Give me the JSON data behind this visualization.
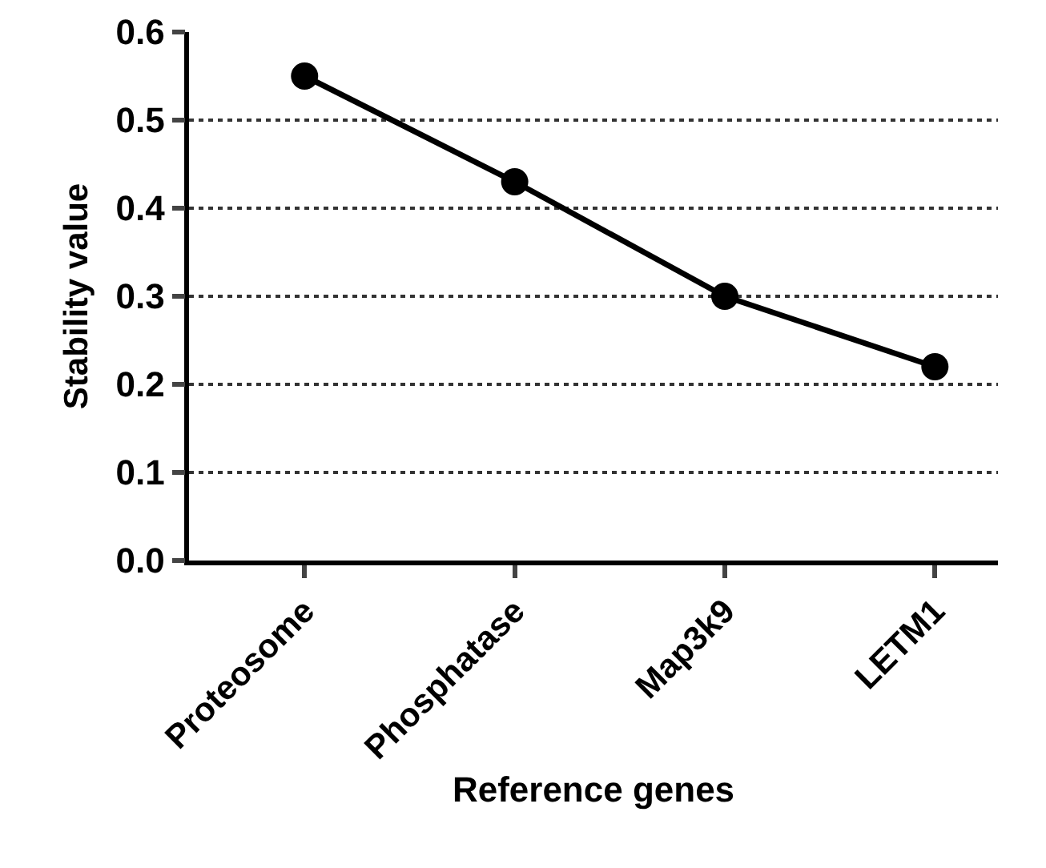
{
  "chart_data": {
    "type": "line",
    "xlabel": "Reference genes",
    "ylabel": "Stability value",
    "categories": [
      "Proteosome",
      "Phosphatase",
      "Map3k9",
      "LETM1"
    ],
    "series": [
      {
        "color": "#000000",
        "values": [
          0.55,
          0.43,
          0.3,
          0.22
        ]
      }
    ],
    "ylim": [
      0,
      0.6
    ],
    "yticks": [
      {
        "value": 0,
        "label": "0.0"
      },
      0.1,
      0.2,
      0.3,
      0.4,
      0.5,
      0.6
    ],
    "grid": "y",
    "marker": "circle",
    "line_style": "solid"
  }
}
